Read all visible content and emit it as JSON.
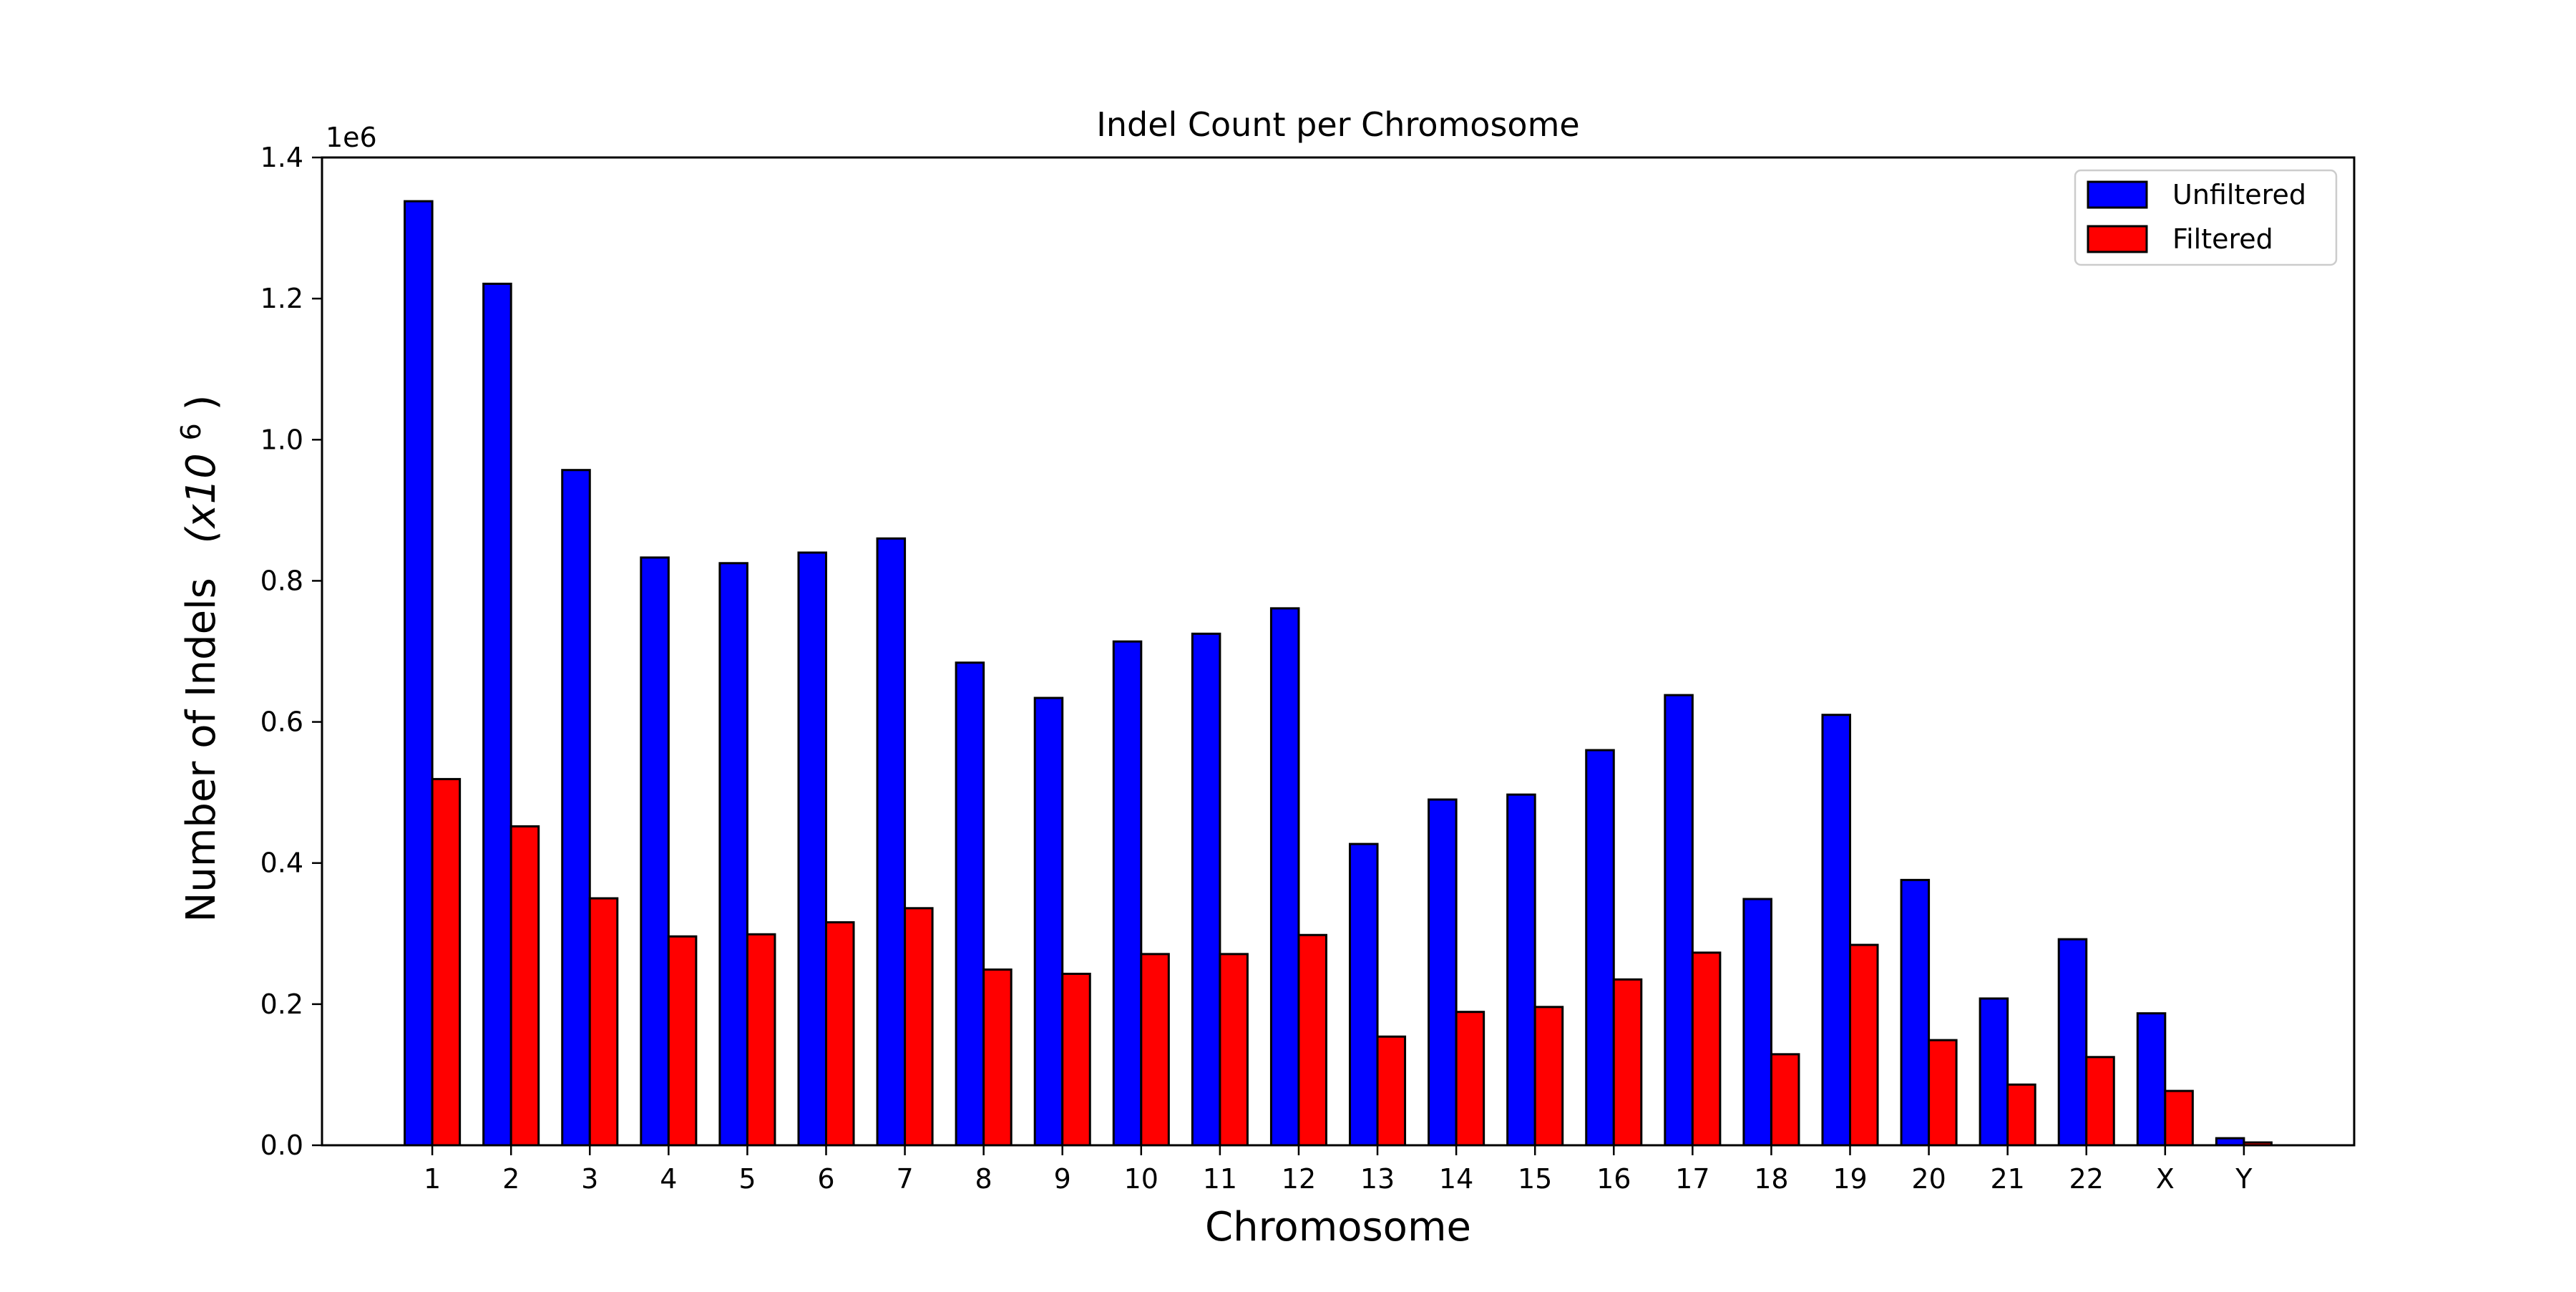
{
  "chart_data": {
    "type": "bar",
    "title": "Indel Count per Chromosome",
    "xlabel": "Chromosome",
    "ylabel": "Number of Indels",
    "ylabel_multiplier": "(x10",
    "ylabel_exponent": "6",
    "ylabel_close": ")",
    "offset_text": "1e6",
    "ylim": [
      0,
      1.4
    ],
    "yticks": [
      "0.0",
      "0.2",
      "0.4",
      "0.6",
      "0.8",
      "1.0",
      "1.2",
      "1.4"
    ],
    "categories": [
      "1",
      "2",
      "3",
      "4",
      "5",
      "6",
      "7",
      "8",
      "9",
      "10",
      "11",
      "12",
      "13",
      "14",
      "15",
      "16",
      "17",
      "18",
      "19",
      "20",
      "21",
      "22",
      "X",
      "Y"
    ],
    "series": [
      {
        "name": "Unfiltered",
        "color": "#0000ff",
        "values": [
          1.338,
          1.221,
          0.957,
          0.833,
          0.825,
          0.84,
          0.86,
          0.684,
          0.634,
          0.714,
          0.725,
          0.761,
          0.427,
          0.49,
          0.497,
          0.56,
          0.638,
          0.349,
          0.61,
          0.376,
          0.208,
          0.292,
          0.187,
          0.01
        ]
      },
      {
        "name": "Filtered",
        "color": "#ff0000",
        "values": [
          0.519,
          0.452,
          0.35,
          0.296,
          0.299,
          0.316,
          0.336,
          0.249,
          0.243,
          0.271,
          0.271,
          0.298,
          0.154,
          0.189,
          0.196,
          0.235,
          0.273,
          0.129,
          0.284,
          0.149,
          0.086,
          0.125,
          0.077,
          0.004
        ]
      }
    ],
    "legend_position": "upper right",
    "grid": false
  }
}
